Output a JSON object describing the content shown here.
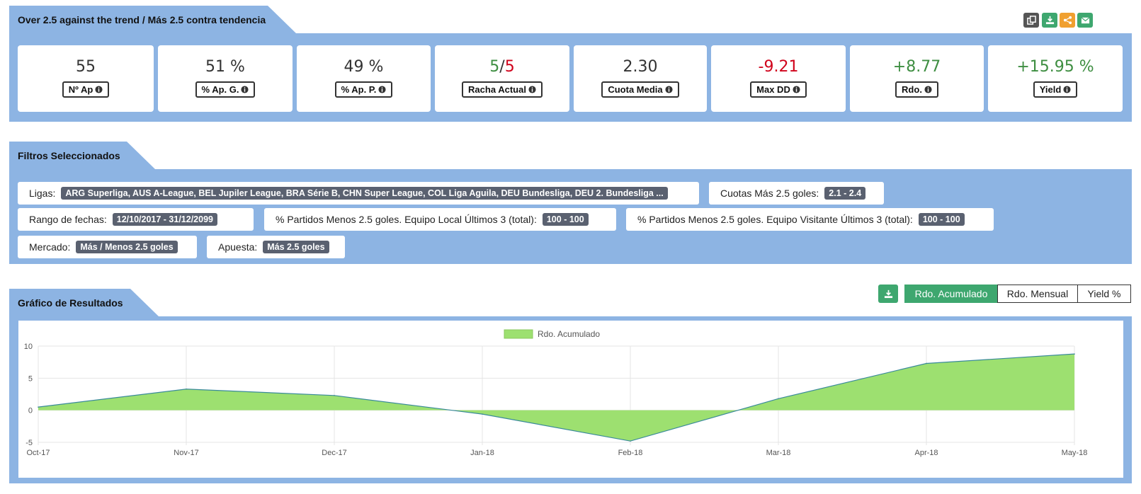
{
  "header": {
    "title": "Over 2.5 against the trend / Más 2.5 contra tendencia"
  },
  "toolbar": [
    {
      "icon": "copy-icon",
      "color": "#555555"
    },
    {
      "icon": "download-icon",
      "color": "#3ea76f"
    },
    {
      "icon": "share-icon",
      "color": "#f0a030"
    },
    {
      "icon": "email-icon",
      "color": "#3ea76f"
    }
  ],
  "stats": {
    "n_ap": {
      "value": "55",
      "label": "Nº Ap"
    },
    "pct_g": {
      "value": "51 %",
      "label": "% Ap. G."
    },
    "pct_p": {
      "value": "49 %",
      "label": "% Ap. P."
    },
    "racha": {
      "value_a": "5",
      "sep": "/",
      "value_b": "5",
      "label": "Racha Actual"
    },
    "cuota": {
      "value": "2.30",
      "label": "Cuota Media"
    },
    "maxdd": {
      "value": "-9.21",
      "label": "Max DD"
    },
    "rdo": {
      "value": "+8.77",
      "label": "Rdo."
    },
    "yield": {
      "value": "+15.95 %",
      "label": "Yield"
    }
  },
  "filters": {
    "title": "Filtros Seleccionados",
    "ligas": {
      "label": "Ligas:",
      "value": "ARG Superliga, AUS A-League, BEL Jupiler League, BRA Série B, CHN Super League, COL Liga Aguila, DEU Bundesliga, DEU 2. Bundesliga ..."
    },
    "cuotas": {
      "label": "Cuotas Más 2.5 goles:",
      "value": "2.1 - 2.4"
    },
    "rango": {
      "label": "Rango de fechas:",
      "value": "12/10/2017 - 31/12/2099"
    },
    "local": {
      "label": "% Partidos Menos 2.5 goles. Equipo Local Últimos 3 (total):",
      "value": "100 - 100"
    },
    "visitante": {
      "label": "% Partidos Menos 2.5 goles. Equipo Visitante Últimos 3 (total):",
      "value": "100 - 100"
    },
    "mercado": {
      "label": "Mercado:",
      "value": "Más / Menos 2.5 goles"
    },
    "apuesta": {
      "label": "Apuesta:",
      "value": "Más 2.5 goles"
    }
  },
  "chart_section": {
    "title": "Gráfico de Resultados",
    "tabs": {
      "acumulado": "Rdo. Acumulado",
      "mensual": "Rdo. Mensual",
      "yield": "Yield %"
    }
  },
  "chart_data": {
    "type": "area",
    "categories": [
      "Oct-17",
      "Nov-17",
      "Dec-17",
      "Jan-18",
      "Feb-18",
      "Mar-18",
      "Apr-18",
      "May-18"
    ],
    "series": [
      {
        "name": "Rdo. Acumulado",
        "values": [
          0.5,
          3.3,
          2.3,
          -0.6,
          -4.8,
          1.8,
          7.3,
          8.77
        ]
      }
    ],
    "ylim": [
      -5,
      10
    ],
    "yticks": [
      "10",
      "5",
      "0",
      "-5"
    ],
    "ytick_values": [
      10,
      5,
      0,
      -5
    ],
    "legend": "top-center",
    "grid": true,
    "colors": {
      "fill": "#9de070",
      "line": "#3a8a9a"
    }
  }
}
